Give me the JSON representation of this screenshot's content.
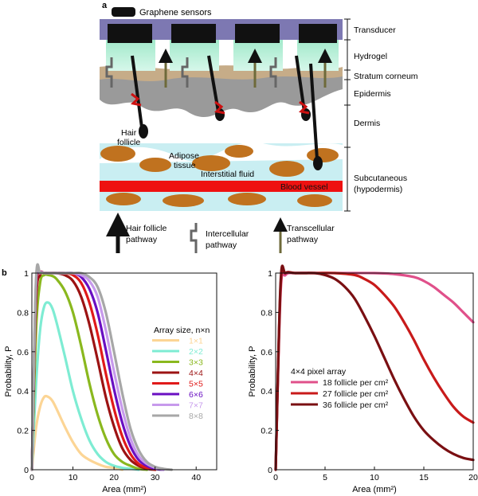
{
  "panel_a": {
    "label": "a",
    "legend_sensor": "Graphene sensors",
    "layers": {
      "transducer": "Transducer",
      "hydrogel": "Hydrogel",
      "stratum_corneum": "Stratum corneum",
      "epidermis": "Epidermis",
      "dermis": "Dermis",
      "subcutaneous": "Subcutaneous\n(hypodermis)"
    },
    "in_figure": {
      "hair_follicle": "Hair\nfollicle",
      "adipose_tissue": "Adipose\ntissue",
      "interstitial_fluid": "Interstitial fluid",
      "blood_vessel": "Blood vessel"
    },
    "pathways": {
      "hair_follicle": "Hair follicle\npathway",
      "intercellular": "Intercellular\npathway",
      "transcellular": "Transcellular\npathway"
    },
    "colors": {
      "transducer": "#7d78b2",
      "sensor": "#111111",
      "hydrogel": "#b7f0d9",
      "skin": "#9a9a9a",
      "stratum": "#c6ac88",
      "fluid": "#c9eef2",
      "adipose": "#c0721f",
      "blood": "#ee1111",
      "transcellular": "#6e6a3a"
    }
  },
  "panel_b": {
    "label": "b"
  },
  "chart_data": [
    {
      "type": "line",
      "xlabel": "Area (mm²)",
      "ylabel": "Probability, P",
      "xlim": [
        0,
        45
      ],
      "ylim": [
        0,
        1
      ],
      "xticks": [
        0,
        10,
        20,
        30,
        40
      ],
      "yticks": [
        0,
        0.2,
        0.4,
        0.6,
        0.8,
        1
      ],
      "grid": false,
      "legend_title": "Array size, n×n",
      "legend_placement": "right",
      "series": [
        {
          "name": "1×1",
          "color": "#fcd595",
          "x": [
            0,
            1,
            2,
            3,
            4,
            5,
            6,
            8,
            10,
            12,
            14,
            16,
            18,
            20,
            22
          ],
          "y": [
            0,
            0.21,
            0.32,
            0.37,
            0.37,
            0.35,
            0.31,
            0.22,
            0.14,
            0.08,
            0.05,
            0.03,
            0.015,
            0.01,
            0
          ]
        },
        {
          "name": "2×2",
          "color": "#7eecd3",
          "x": [
            0,
            1,
            2,
            3,
            4,
            5,
            6,
            8,
            10,
            12,
            14,
            16,
            18,
            20,
            22,
            24,
            26
          ],
          "y": [
            0,
            0.43,
            0.71,
            0.83,
            0.85,
            0.82,
            0.75,
            0.58,
            0.4,
            0.26,
            0.15,
            0.08,
            0.04,
            0.02,
            0.01,
            0.005,
            0
          ]
        },
        {
          "name": "3×3",
          "color": "#8ab81e",
          "x": [
            0,
            1,
            2,
            3,
            4,
            5,
            6,
            8,
            10,
            12,
            14,
            16,
            18,
            20,
            22,
            24,
            26,
            28
          ],
          "y": [
            0,
            0.7,
            0.95,
            0.99,
            0.99,
            0.985,
            0.97,
            0.91,
            0.8,
            0.63,
            0.44,
            0.28,
            0.16,
            0.08,
            0.04,
            0.02,
            0.005,
            0
          ]
        },
        {
          "name": "4×4",
          "color": "#9c1313",
          "x": [
            0,
            1,
            2,
            3,
            4,
            6,
            8,
            10,
            12,
            14,
            16,
            18,
            20,
            22,
            24,
            26,
            28,
            30
          ],
          "y": [
            0,
            0.85,
            0.99,
            1,
            1,
            1,
            0.99,
            0.96,
            0.88,
            0.74,
            0.56,
            0.37,
            0.22,
            0.11,
            0.05,
            0.02,
            0.005,
            0
          ]
        },
        {
          "name": "5×5",
          "color": "#e01a1a",
          "x": [
            0,
            1,
            2,
            3,
            4,
            6,
            8,
            10,
            12,
            14,
            16,
            18,
            20,
            22,
            24,
            26,
            28,
            30
          ],
          "y": [
            0,
            0.9,
            1,
            1,
            1,
            1,
            1,
            0.99,
            0.95,
            0.85,
            0.69,
            0.49,
            0.31,
            0.17,
            0.08,
            0.03,
            0.01,
            0
          ]
        },
        {
          "name": "6×6",
          "color": "#6a0fc2",
          "x": [
            0,
            1,
            2,
            3,
            4,
            6,
            8,
            10,
            12,
            14,
            16,
            18,
            20,
            22,
            24,
            26,
            28,
            30,
            32
          ],
          "y": [
            0,
            0.93,
            1,
            1,
            1,
            1,
            1,
            1,
            0.98,
            0.92,
            0.8,
            0.61,
            0.41,
            0.24,
            0.12,
            0.05,
            0.02,
            0.005,
            0
          ]
        },
        {
          "name": "7×7",
          "color": "#c79aec",
          "x": [
            0,
            1,
            2,
            3,
            4,
            6,
            8,
            10,
            12,
            14,
            16,
            18,
            20,
            22,
            24,
            26,
            28,
            30,
            32
          ],
          "y": [
            0,
            0.95,
            1,
            1,
            1,
            1,
            1,
            1,
            0.99,
            0.96,
            0.88,
            0.71,
            0.5,
            0.31,
            0.16,
            0.07,
            0.03,
            0.01,
            0
          ]
        },
        {
          "name": "8×8",
          "color": "#a7a7a7",
          "x": [
            0,
            1,
            2,
            3,
            4,
            6,
            8,
            10,
            12,
            14,
            16,
            18,
            20,
            22,
            24,
            26,
            28,
            30,
            32,
            34
          ],
          "y": [
            0,
            0.96,
            1,
            1,
            1,
            1,
            1,
            1,
            1,
            0.98,
            0.93,
            0.8,
            0.6,
            0.39,
            0.21,
            0.1,
            0.04,
            0.015,
            0.005,
            0
          ]
        }
      ]
    },
    {
      "type": "line",
      "xlabel": "Area (mm²)",
      "ylabel": "Probability, P",
      "xlim": [
        0,
        20
      ],
      "ylim": [
        0,
        1
      ],
      "xticks": [
        0,
        5,
        10,
        15,
        20
      ],
      "yticks": [
        0,
        0.2,
        0.4,
        0.6,
        0.8,
        1
      ],
      "grid": false,
      "legend_title": "4×4 pixel array",
      "legend_placement": "center-left",
      "series": [
        {
          "name": "18 follicle per cm²",
          "color": "#e0508a",
          "x": [
            0,
            0.5,
            1,
            2,
            4,
            6,
            8,
            10,
            12,
            14,
            15,
            16,
            17,
            18,
            19,
            20
          ],
          "y": [
            0,
            0.9,
            0.99,
            1,
            1,
            1,
            1,
            1,
            0.995,
            0.98,
            0.96,
            0.93,
            0.89,
            0.85,
            0.8,
            0.75
          ]
        },
        {
          "name": "27 follicle per cm²",
          "color": "#c81a1a",
          "x": [
            0,
            0.5,
            1,
            2,
            4,
            6,
            8,
            9,
            10,
            11,
            12,
            13,
            14,
            15,
            16,
            17,
            18,
            19,
            20
          ],
          "y": [
            0,
            0.93,
            1,
            1,
            1,
            1,
            0.99,
            0.97,
            0.94,
            0.89,
            0.83,
            0.75,
            0.66,
            0.56,
            0.47,
            0.39,
            0.32,
            0.27,
            0.24
          ]
        },
        {
          "name": "36 follicle per cm²",
          "color": "#7a0f12",
          "x": [
            0,
            0.5,
            1,
            2,
            3,
            4,
            5,
            6,
            7,
            8,
            9,
            10,
            11,
            12,
            13,
            14,
            15,
            16,
            17,
            18,
            19,
            20
          ],
          "y": [
            0,
            0.95,
            1,
            1,
            1,
            1,
            0.99,
            0.97,
            0.93,
            0.87,
            0.78,
            0.68,
            0.57,
            0.46,
            0.36,
            0.27,
            0.2,
            0.15,
            0.11,
            0.08,
            0.06,
            0.05
          ]
        }
      ]
    }
  ]
}
